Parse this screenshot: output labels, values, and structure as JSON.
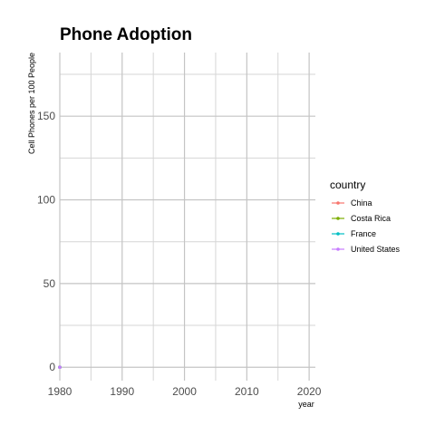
{
  "chart_data": {
    "type": "line",
    "title": "Phone Adoption",
    "xlabel": "year",
    "ylabel": "Cell Phones per 100 People",
    "xlim": [
      1980,
      2021
    ],
    "ylim": [
      -8,
      188
    ],
    "x_ticks": [
      1980,
      1990,
      2000,
      2010,
      2020
    ],
    "y_ticks": [
      0,
      50,
      100,
      150
    ],
    "grid": true,
    "legend_title": "country",
    "legend_position": "right",
    "series": [
      {
        "name": "China",
        "color": "#F8766D",
        "points": [
          [
            1980,
            0
          ]
        ]
      },
      {
        "name": "Costa Rica",
        "color": "#7CAE00",
        "points": [
          [
            1980,
            0
          ]
        ]
      },
      {
        "name": "France",
        "color": "#00BFC4",
        "points": [
          [
            1980,
            0
          ]
        ]
      },
      {
        "name": "United States",
        "color": "#C77CFF",
        "points": [
          [
            1980,
            0
          ]
        ]
      }
    ]
  }
}
